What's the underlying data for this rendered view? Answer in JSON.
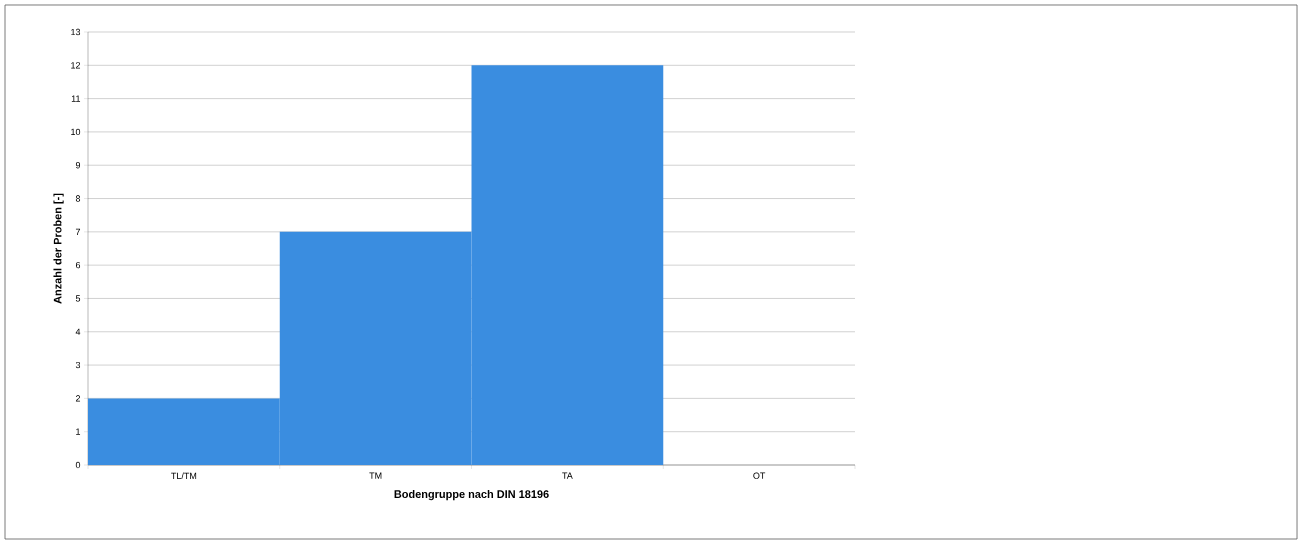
{
  "chart_data": {
    "type": "bar",
    "xlabel": "Bodengruppe nach DIN 18196",
    "ylabel": "Anzahl der Proben [-]",
    "categories": [
      "TL/TM",
      "TM",
      "TA",
      "OT"
    ],
    "values": [
      2,
      7,
      12,
      0
    ],
    "color": "#3a8de0",
    "ylim": [
      0,
      13
    ],
    "yticks": [
      0,
      1,
      2,
      3,
      4,
      5,
      6,
      7,
      8,
      9,
      10,
      11,
      12,
      13
    ],
    "grid": "y"
  }
}
